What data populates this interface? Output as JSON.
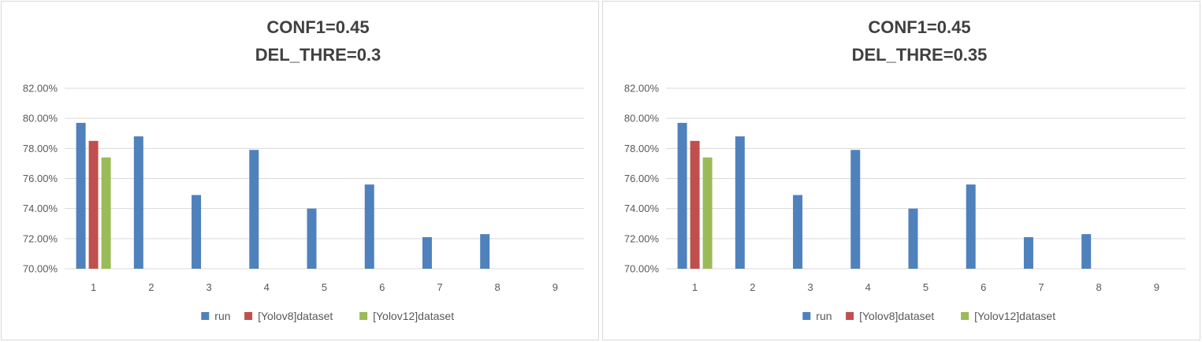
{
  "chart_data": [
    {
      "type": "bar",
      "title_lines": [
        "CONF1=0.45",
        "DEL_THRE=0.3"
      ],
      "categories": [
        "1",
        "2",
        "3",
        "4",
        "5",
        "6",
        "7",
        "8",
        "9"
      ],
      "ylim": [
        0.7,
        0.82
      ],
      "yticks": [
        0.7,
        0.72,
        0.74,
        0.76,
        0.78,
        0.8,
        0.82
      ],
      "ytick_labels": [
        "70.00%",
        "72.00%",
        "74.00%",
        "76.00%",
        "78.00%",
        "80.00%",
        "82.00%"
      ],
      "grid": true,
      "legend_position": "bottom",
      "series": [
        {
          "name": "run",
          "color": "#4f81bd",
          "values": [
            0.797,
            0.788,
            0.749,
            0.779,
            0.74,
            0.756,
            0.721,
            0.723,
            null
          ]
        },
        {
          "name": "[Yolov8]dataset",
          "color": "#c0504d",
          "values": [
            0.785,
            null,
            null,
            null,
            null,
            null,
            null,
            null,
            null
          ]
        },
        {
          "name": "[Yolov12]dataset",
          "color": "#9bbb59",
          "values": [
            0.774,
            null,
            null,
            null,
            null,
            null,
            null,
            null,
            null
          ]
        }
      ]
    },
    {
      "type": "bar",
      "title_lines": [
        "CONF1=0.45",
        "DEL_THRE=0.35"
      ],
      "categories": [
        "1",
        "2",
        "3",
        "4",
        "5",
        "6",
        "7",
        "8",
        "9"
      ],
      "ylim": [
        0.7,
        0.82
      ],
      "yticks": [
        0.7,
        0.72,
        0.74,
        0.76,
        0.78,
        0.8,
        0.82
      ],
      "ytick_labels": [
        "70.00%",
        "72.00%",
        "74.00%",
        "76.00%",
        "78.00%",
        "80.00%",
        "82.00%"
      ],
      "grid": true,
      "legend_position": "bottom",
      "series": [
        {
          "name": "run",
          "color": "#4f81bd",
          "values": [
            0.797,
            0.788,
            0.749,
            0.779,
            0.74,
            0.756,
            0.721,
            0.723,
            null
          ]
        },
        {
          "name": "[Yolov8]dataset",
          "color": "#c0504d",
          "values": [
            0.785,
            null,
            null,
            null,
            null,
            null,
            null,
            null,
            null
          ]
        },
        {
          "name": "[Yolov12]dataset",
          "color": "#9bbb59",
          "values": [
            0.774,
            null,
            null,
            null,
            null,
            null,
            null,
            null,
            null
          ]
        }
      ]
    }
  ]
}
